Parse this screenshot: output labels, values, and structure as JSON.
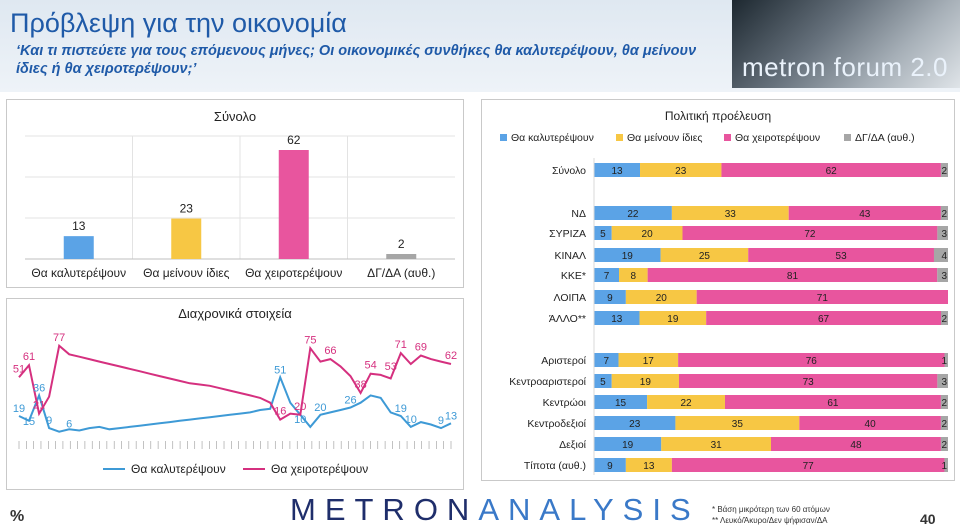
{
  "header": {
    "title": "Πρόβλεψη για την οικονομία",
    "subtitle": "‘Και τι πιστεύετε για τους επόμενους μήνες; Οι οικονομικές συνθήκες θα καλυτερέψουν, θα μείνουν ίδιες ή θα χειροτερέψουν;’",
    "logo": "metron forum 2.0"
  },
  "footer": {
    "percent": "%",
    "logo_dark": "METRON",
    "logo_light": "ANALYSIS",
    "note1": "*  Βάση μικρότερη των 60 ατόμων",
    "note2": "** Λευκό/Άκυρο/Δεν ψήφισαν/ΔΑ",
    "page": "40"
  },
  "colors": {
    "better": "#5ba3e6",
    "same": "#f7c744",
    "worse": "#e8559e",
    "na": "#a6a6a6",
    "line_better": "#3e9ad6",
    "line_worse": "#d5307f"
  },
  "chart_data": [
    {
      "type": "bar",
      "title": "Σύνολο",
      "categories": [
        "Θα καλυτερέψουν",
        "Θα μείνουν ίδιες",
        "Θα χειροτερέψουν",
        "ΔΓ/ΔΑ (αυθ.)"
      ],
      "values": [
        13,
        23,
        62,
        2
      ],
      "ylim": [
        0,
        70
      ]
    },
    {
      "type": "line",
      "title": "Διαχρονικά στοιχεία",
      "series": [
        {
          "name": "Θα καλυτερέψουν",
          "values": [
            19,
            15,
            36,
            9,
            6,
            8,
            7,
            9,
            10,
            8,
            9,
            10,
            11,
            12,
            13,
            14,
            15,
            16,
            17,
            18,
            19,
            20,
            21,
            22,
            24,
            25,
            51,
            30,
            20,
            10,
            20,
            22,
            24,
            26,
            30,
            36,
            34,
            22,
            19,
            10,
            14,
            12,
            9,
            13
          ]
        },
        {
          "name": "Θα χειροτερέψουν",
          "values": [
            51,
            61,
            21,
            35,
            77,
            70,
            68,
            66,
            64,
            62,
            60,
            58,
            56,
            54,
            52,
            50,
            48,
            46,
            45,
            44,
            42,
            40,
            38,
            36,
            34,
            30,
            16,
            21,
            20,
            75,
            64,
            66,
            60,
            52,
            38,
            54,
            53,
            50,
            71,
            62,
            69,
            66,
            64,
            62
          ]
        }
      ],
      "labels_better": [
        "19",
        "15",
        "36",
        "9",
        "6",
        "51",
        "10",
        "20",
        "26",
        "19",
        "10",
        "9",
        "13"
      ],
      "labels_worse": [
        "51",
        "61",
        "21",
        "77",
        "16",
        "20",
        "75",
        "66",
        "38",
        "54",
        "53",
        "71",
        "69",
        "62"
      ],
      "ylim": [
        0,
        100
      ]
    },
    {
      "type": "bar",
      "stacked": true,
      "orientation": "horizontal",
      "title": "Πολιτική προέλευση",
      "legend": [
        "Θα καλυτερέψουν",
        "Θα μείνουν ίδιες",
        "Θα χειροτερέψουν",
        "ΔΓ/ΔΑ (αυθ.)"
      ],
      "legend_position": "top",
      "rows": [
        {
          "label": "Σύνολο",
          "values": [
            13,
            23,
            62,
            2
          ]
        },
        {
          "label": "ΝΔ",
          "values": [
            22,
            33,
            43,
            2
          ]
        },
        {
          "label": "ΣΥΡΙΖΑ",
          "values": [
            5,
            20,
            72,
            3
          ]
        },
        {
          "label": "ΚΙΝΑΛ",
          "values": [
            19,
            25,
            53,
            4
          ]
        },
        {
          "label": "ΚΚΕ*",
          "values": [
            7,
            8,
            81,
            3
          ]
        },
        {
          "label": "ΛΟΙΠΑ",
          "values": [
            9,
            20,
            71,
            0
          ]
        },
        {
          "label": "ΆΛΛΟ**",
          "values": [
            13,
            19,
            67,
            2
          ]
        },
        {
          "label": "Αριστεροί",
          "values": [
            7,
            17,
            76,
            1
          ]
        },
        {
          "label": "Κεντροαριστεροί",
          "values": [
            5,
            19,
            73,
            3
          ]
        },
        {
          "label": "Κεντρώοι",
          "values": [
            15,
            22,
            61,
            2
          ]
        },
        {
          "label": "Κεντροδεξιοί",
          "values": [
            23,
            35,
            40,
            2
          ]
        },
        {
          "label": "Δεξιοί",
          "values": [
            19,
            31,
            48,
            2
          ]
        },
        {
          "label": "Τίποτα (αυθ.)",
          "values": [
            9,
            13,
            77,
            1
          ]
        }
      ]
    }
  ]
}
